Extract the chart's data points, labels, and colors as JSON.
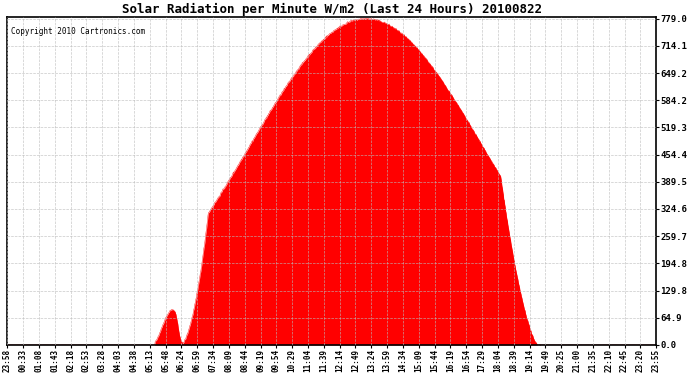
{
  "title": "Solar Radiation per Minute W/m2 (Last 24 Hours) 20100822",
  "copyright": "Copyright 2010 Cartronics.com",
  "fill_color": "#FF0000",
  "line_color": "#FF0000",
  "bg_color": "#FFFFFF",
  "grid_color": "#AAAAAA",
  "dashed_line_color": "#FF0000",
  "ytick_labels": [
    "0.0",
    "64.9",
    "129.8",
    "194.8",
    "259.7",
    "324.6",
    "389.5",
    "454.4",
    "519.3",
    "584.2",
    "649.2",
    "714.1",
    "779.0"
  ],
  "ytick_values": [
    0.0,
    64.9,
    129.8,
    194.8,
    259.7,
    324.6,
    389.5,
    454.4,
    519.3,
    584.2,
    649.2,
    714.1,
    779.0
  ],
  "ymax": 779.0,
  "ymin": 0.0,
  "x_tick_labels": [
    "23:58",
    "00:33",
    "01:08",
    "01:43",
    "02:18",
    "02:53",
    "03:28",
    "04:03",
    "04:38",
    "05:13",
    "05:48",
    "06:24",
    "06:59",
    "07:34",
    "08:09",
    "08:44",
    "09:19",
    "09:54",
    "10:29",
    "11:04",
    "11:39",
    "12:14",
    "12:49",
    "13:24",
    "13:59",
    "14:34",
    "15:09",
    "15:44",
    "16:19",
    "16:54",
    "17:29",
    "18:04",
    "18:39",
    "19:14",
    "19:49",
    "20:25",
    "21:00",
    "21:35",
    "22:10",
    "22:45",
    "23:20",
    "23:55"
  ]
}
